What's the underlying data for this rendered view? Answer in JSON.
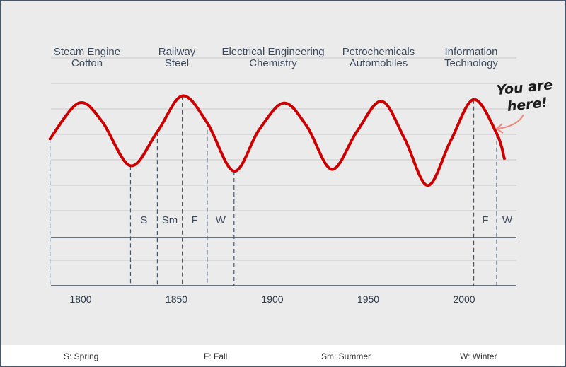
{
  "chart_data": {
    "type": "line",
    "title": "",
    "xlabel": "",
    "ylabel": "",
    "xlim": [
      1785,
      2028
    ],
    "ylim": [
      0,
      10
    ],
    "x_ticks": [
      1800,
      1850,
      1900,
      1950,
      2000
    ],
    "grid": true,
    "series": [
      {
        "values_x": [
          1784,
          1799,
          1811,
          1826,
          1840,
          1853,
          1866,
          1880,
          1893,
          1906,
          1918,
          1931,
          1944,
          1957,
          1969,
          1981,
          1993,
          2005,
          2017,
          2021
        ],
        "values_y": [
          5.8,
          7.8,
          6.8,
          4.3,
          6.2,
          8.2,
          6.7,
          4.0,
          6.3,
          7.8,
          6.5,
          4.1,
          6.2,
          7.9,
          5.8,
          3.2,
          5.7,
          8.0,
          6.1,
          4.7
        ]
      }
    ],
    "color": "#cc0000",
    "eras": [
      {
        "line1": "Steam Engine",
        "line2": "Cotton"
      },
      {
        "line1": "Railway",
        "line2": "Steel"
      },
      {
        "line1": "Electrical Engineering",
        "line2": "Chemistry"
      },
      {
        "line1": "Petrochemicals",
        "line2": "Automobiles"
      },
      {
        "line1": "Information",
        "line2": "Technology"
      }
    ],
    "dashed_years": [
      1784,
      1826,
      1840,
      1853,
      1866,
      1880,
      2005,
      2017
    ],
    "seasons": [
      {
        "label": "S",
        "x_from": 1826,
        "x_to": 1840
      },
      {
        "label": "Sm",
        "x_from": 1840,
        "x_to": 1853
      },
      {
        "label": "F",
        "x_from": 1853,
        "x_to": 1866
      },
      {
        "label": "W",
        "x_from": 1866,
        "x_to": 1880
      },
      {
        "label": "F",
        "x_from": 2005,
        "x_to": 2017
      },
      {
        "label": "W",
        "x_from": 2017,
        "x_to": 2028
      }
    ],
    "annotation": {
      "line1": "You are",
      "line2": "here!",
      "x": 2017
    }
  },
  "legend": [
    {
      "text": "S: Spring"
    },
    {
      "text": "F: Fall"
    },
    {
      "text": "Sm: Summer"
    },
    {
      "text": "W: Winter"
    }
  ]
}
